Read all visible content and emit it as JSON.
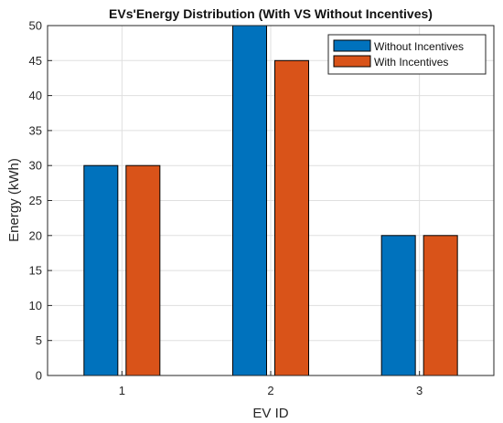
{
  "chart_data": {
    "type": "bar",
    "title": "EVs'Energy Distribution (With VS Without Incentives)",
    "xlabel": "EV ID",
    "ylabel": "Energy (kWh)",
    "categories": [
      "1",
      "2",
      "3"
    ],
    "ylim": [
      0,
      50
    ],
    "yticks": [
      "0",
      "5",
      "10",
      "15",
      "20",
      "25",
      "30",
      "35",
      "40",
      "45",
      "50"
    ],
    "grid": true,
    "legend_position": "top-right",
    "series": [
      {
        "name": "Without Incentives",
        "values": [
          30,
          50,
          20
        ],
        "color": "#0072BD"
      },
      {
        "name": "With Incentives",
        "values": [
          30,
          45,
          20
        ],
        "color": "#D95319"
      }
    ]
  }
}
